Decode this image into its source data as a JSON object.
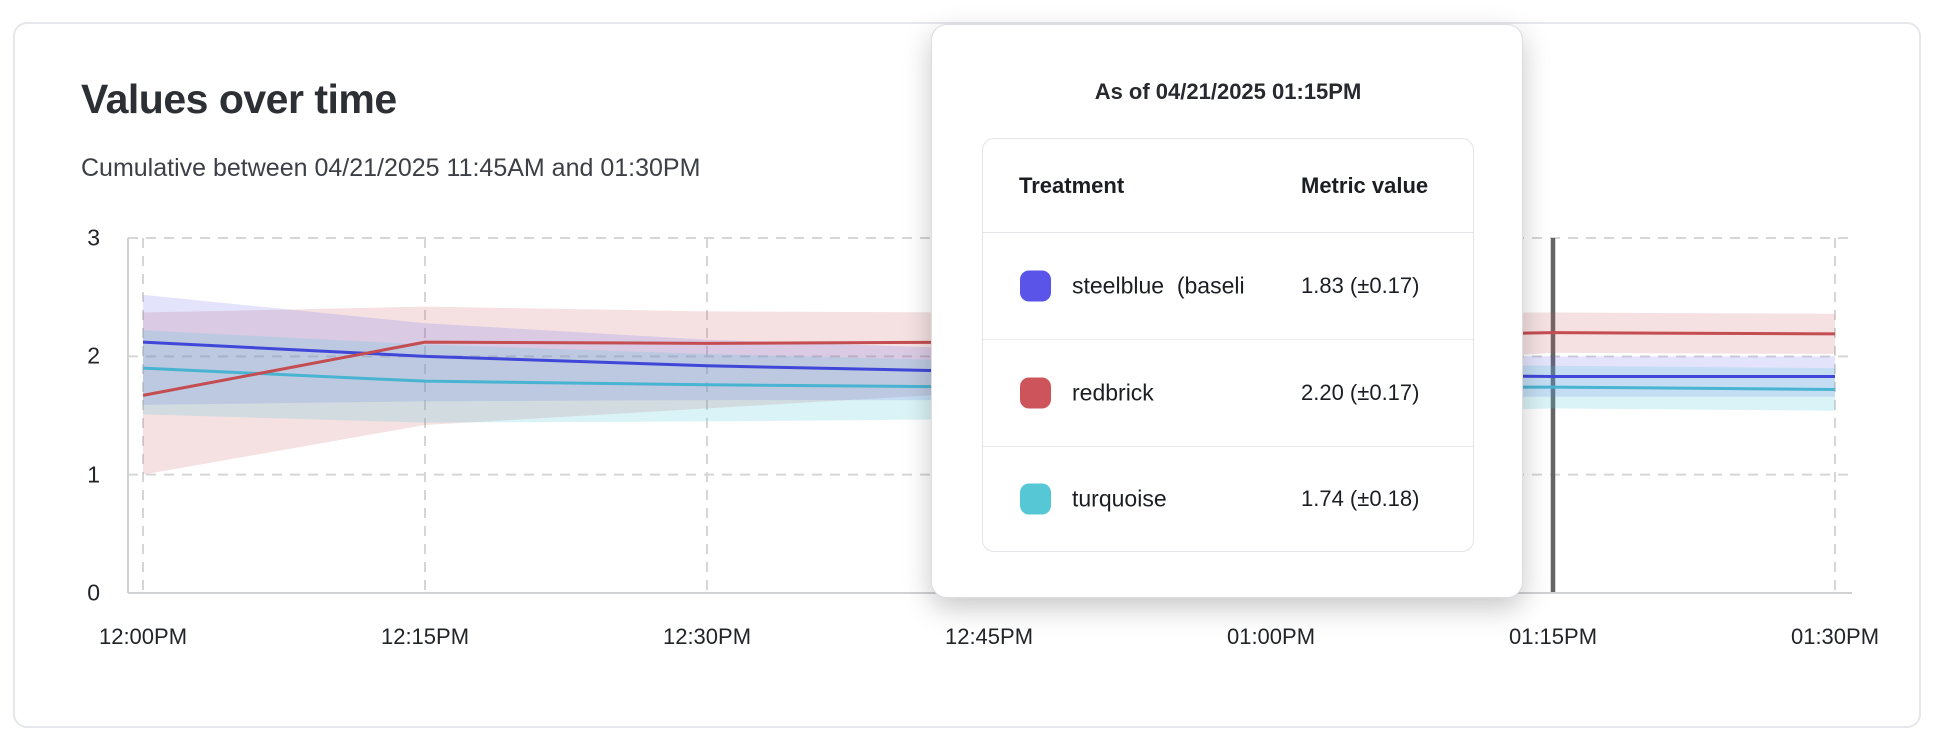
{
  "card": {
    "title": "Values over time",
    "subtitle": "Cumulative between 04/21/2025 11:45AM and 01:30PM"
  },
  "tooltip": {
    "title": "As of 04/21/2025 01:15PM",
    "columns": [
      "Treatment",
      "Metric value"
    ],
    "rows": [
      {
        "key": "steelblue",
        "swatch_color": "#5a55e8",
        "name": "steelblue  (baseli",
        "value": "1.83 (±0.17)"
      },
      {
        "key": "redbrick",
        "swatch_color": "#cd545a",
        "name": "redbrick",
        "value": "2.20 (±0.17)"
      },
      {
        "key": "turquoise",
        "swatch_color": "#55c7d5",
        "name": "turquoise",
        "value": "1.74 (±0.18)"
      }
    ]
  },
  "chart_data": {
    "type": "line",
    "title": "Values over time",
    "xlabel": "",
    "ylabel": "",
    "x_labels": [
      "12:00PM",
      "12:15PM",
      "12:30PM",
      "12:45PM",
      "01:00PM",
      "01:15PM",
      "01:30PM"
    ],
    "y_ticks": [
      0,
      1,
      2,
      3
    ],
    "ylim": [
      0,
      3
    ],
    "grid": true,
    "legend_position": "tooltip",
    "marker": {
      "x_index": 5,
      "x_label": "01:15PM",
      "color": "#656565"
    },
    "series": [
      {
        "key": "steelblue",
        "name": "steelblue (baseline)",
        "color": "#4046d8",
        "band_color": "rgba(90,88,235,0.17)",
        "values": [
          2.12,
          2.0,
          1.92,
          1.87,
          1.85,
          1.83,
          1.83
        ],
        "lower": [
          1.59,
          1.62,
          1.63,
          1.63,
          1.64,
          1.66,
          1.66
        ],
        "upper": [
          2.52,
          2.28,
          2.14,
          2.06,
          2.02,
          2.0,
          2.0
        ]
      },
      {
        "key": "redbrick",
        "name": "redbrick",
        "color": "#c44d52",
        "band_color": "rgba(202,91,96,0.18)",
        "values": [
          1.67,
          2.12,
          2.11,
          2.12,
          2.16,
          2.2,
          2.19
        ],
        "lower": [
          1.0,
          1.42,
          1.56,
          1.7,
          1.88,
          2.03,
          2.02
        ],
        "upper": [
          2.37,
          2.42,
          2.38,
          2.37,
          2.37,
          2.37,
          2.36
        ]
      },
      {
        "key": "turquoise",
        "name": "turquoise",
        "color": "#49b4d2",
        "band_color": "rgba(87,200,214,0.22)",
        "values": [
          1.9,
          1.79,
          1.76,
          1.74,
          1.74,
          1.74,
          1.72
        ],
        "lower": [
          1.51,
          1.44,
          1.45,
          1.47,
          1.5,
          1.56,
          1.54
        ],
        "upper": [
          2.22,
          2.1,
          2.02,
          1.96,
          1.94,
          1.92,
          1.9
        ]
      }
    ]
  }
}
